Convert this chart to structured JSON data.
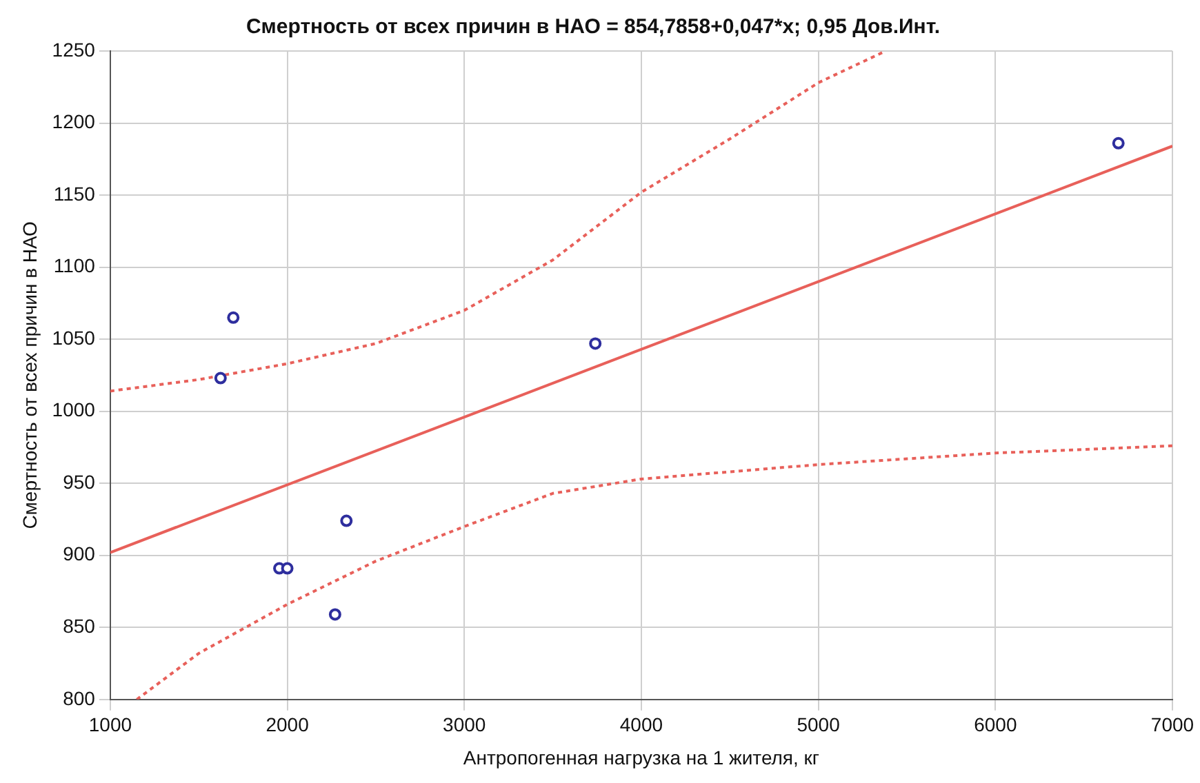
{
  "chart_data": {
    "type": "scatter",
    "title": "Смертность от всех причин в НАО = 854,7858+0,047*x; 0,95 Дов.Инт.",
    "xlabel": "Антропогенная нагрузка на 1 жителя, кг",
    "ylabel": "Смертность от всех причин в НАО",
    "series": [
      {
        "color": "#2e2e9e",
        "marker": "circle",
        "x": [
          1623,
          1695,
          1955,
          2000,
          2270,
          2334,
          3740,
          6695
        ],
        "values": [
          1023,
          1065,
          891,
          891,
          859,
          924,
          1047,
          1186
        ]
      },
      {
        "type": "line",
        "color": "#e8605a",
        "line_style": "solid",
        "marker": "none",
        "x": [
          1000,
          7000
        ],
        "values": [
          902,
          1184
        ]
      },
      {
        "type": "line",
        "color": "#e8605a",
        "line_style": "dotted",
        "marker": "none",
        "x": [
          1000,
          1500,
          2000,
          2500,
          3000,
          3500,
          4000,
          4500,
          5000,
          5380
        ],
        "values": [
          1014,
          1022,
          1033,
          1047,
          1070,
          1105,
          1152,
          1189,
          1228,
          1250
        ]
      },
      {
        "type": "line",
        "color": "#e8605a",
        "line_style": "dotted",
        "marker": "none",
        "x": [
          1150,
          1500,
          2000,
          2500,
          3000,
          3500,
          4000,
          5000,
          6000,
          7000
        ],
        "values": [
          800,
          832,
          866,
          896,
          920,
          943,
          953,
          963,
          971,
          976
        ]
      }
    ],
    "xlim": [
      1000,
      7000
    ],
    "xticks": [
      1000,
      2000,
      3000,
      4000,
      5000,
      6000,
      7000
    ],
    "ylim": [
      800,
      1250
    ],
    "yticks": [
      800,
      850,
      900,
      950,
      1000,
      1050,
      1100,
      1150,
      1200,
      1250
    ],
    "grid": true,
    "legend": false
  }
}
